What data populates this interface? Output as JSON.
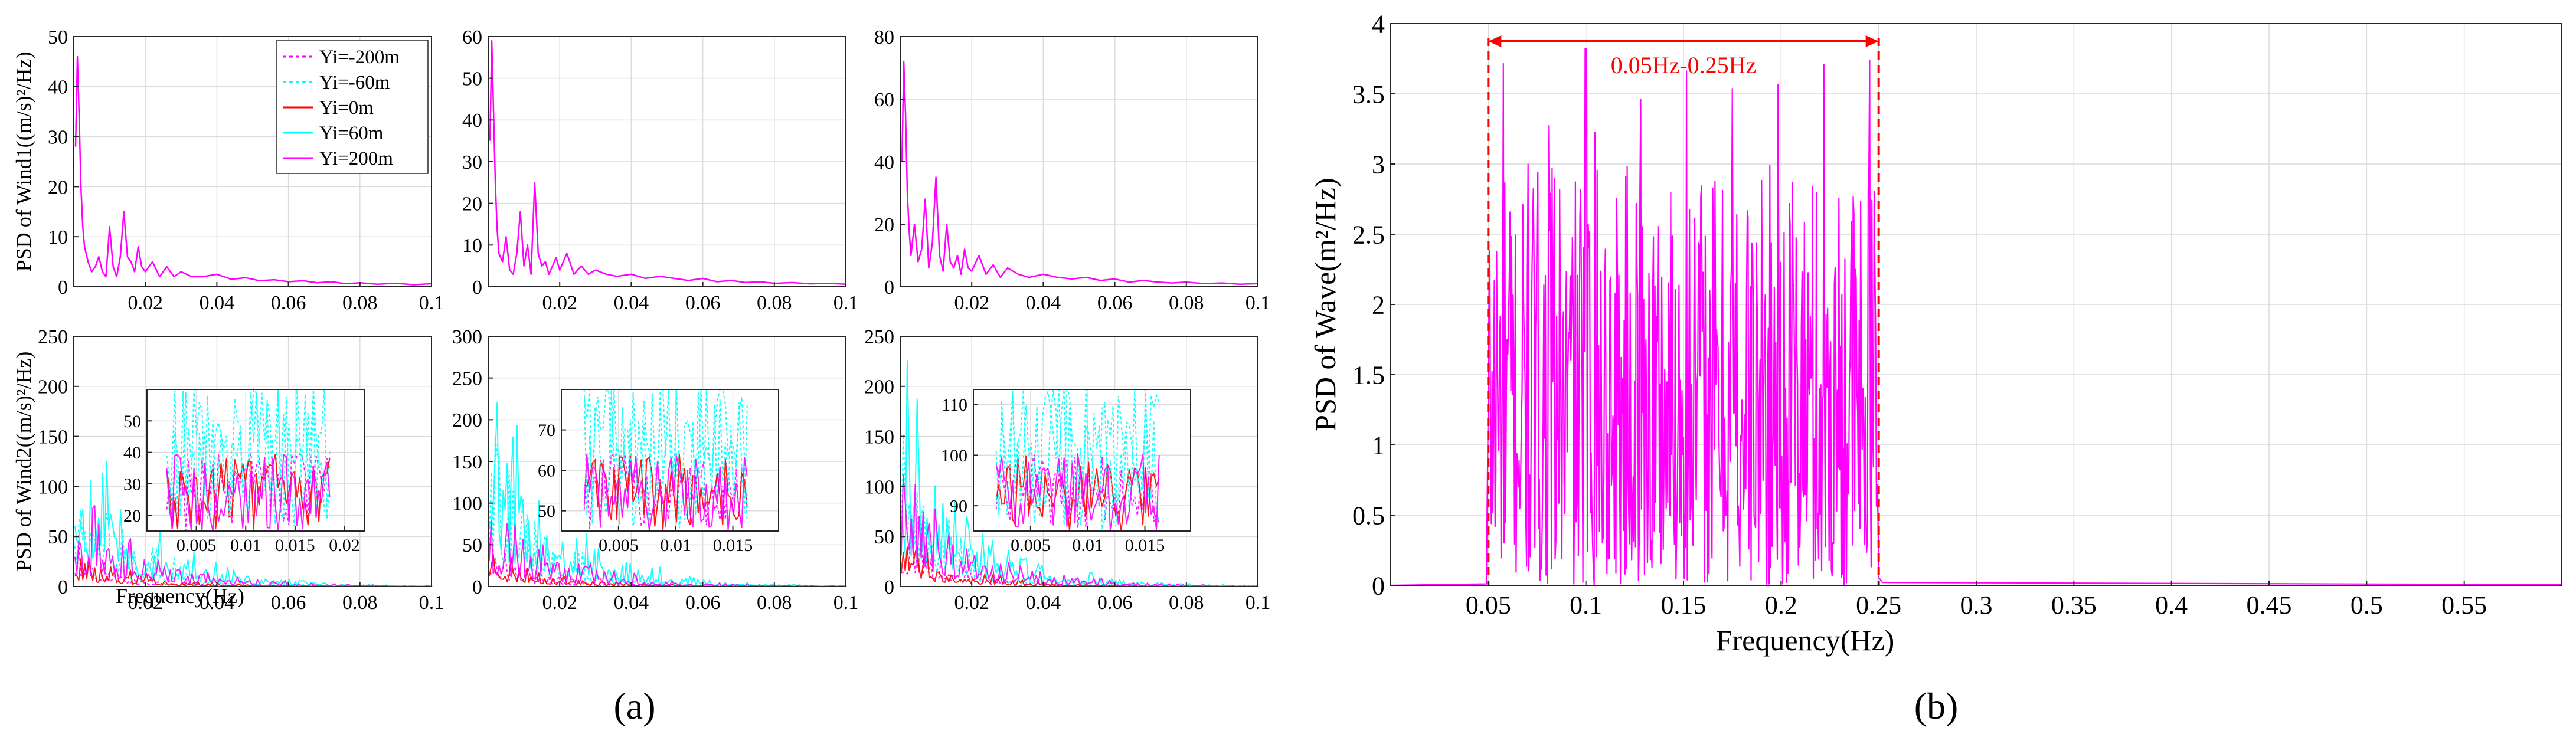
{
  "figure": {
    "panel_a_label": "(a)",
    "panel_b_label": "(b)"
  },
  "chart_data": [
    {
      "id": "a_top_1",
      "type": "line",
      "ylabel": "PSD of Wind1((m/s)²/Hz)",
      "xlim": [
        0,
        0.1
      ],
      "ylim": [
        0,
        50
      ],
      "xticks": [
        "0.02",
        "0.04",
        "0.06",
        "0.08",
        "0.1"
      ],
      "yticks": [
        "0",
        "10",
        "20",
        "30",
        "40",
        "50"
      ],
      "legend": [
        "Yi=-200m",
        "Yi=-60m",
        "Yi=0m",
        "Yi=60m",
        "Yi=200m"
      ],
      "series": [
        {
          "name": "Yi=200m",
          "color": "#ff00ff",
          "x": [
            0.0005,
            0.001,
            0.0015,
            0.002,
            0.0025,
            0.003,
            0.004,
            0.005,
            0.006,
            0.007,
            0.008,
            0.009,
            0.01,
            0.011,
            0.012,
            0.013,
            0.014,
            0.015,
            0.016,
            0.017,
            0.018,
            0.019,
            0.02,
            0.022,
            0.024,
            0.026,
            0.028,
            0.03,
            0.033,
            0.036,
            0.04,
            0.044,
            0.048,
            0.052,
            0.056,
            0.06,
            0.064,
            0.068,
            0.072,
            0.076,
            0.08,
            0.085,
            0.09,
            0.095,
            0.1
          ],
          "y": [
            28,
            46,
            34,
            20,
            12,
            8,
            5,
            3,
            4,
            6,
            3,
            2,
            12,
            4,
            2,
            6,
            15,
            6,
            5,
            3,
            8,
            4,
            3,
            5,
            2,
            4,
            2,
            3,
            2,
            2,
            2.5,
            1.5,
            1.8,
            1.2,
            1.4,
            1,
            1.2,
            0.8,
            1,
            0.6,
            0.8,
            0.5,
            0.7,
            0.4,
            0.6
          ]
        }
      ]
    },
    {
      "id": "a_top_2",
      "type": "line",
      "xlim": [
        0,
        0.1
      ],
      "ylim": [
        0,
        60
      ],
      "xticks": [
        "0.02",
        "0.04",
        "0.06",
        "0.08",
        "0.1"
      ],
      "yticks": [
        "0",
        "10",
        "20",
        "30",
        "40",
        "50",
        "60"
      ],
      "series": [
        {
          "name": "Yi=200m",
          "color": "#ff00ff",
          "x": [
            0.0005,
            0.001,
            0.0015,
            0.002,
            0.0025,
            0.003,
            0.004,
            0.005,
            0.006,
            0.007,
            0.008,
            0.009,
            0.01,
            0.011,
            0.012,
            0.013,
            0.014,
            0.015,
            0.016,
            0.017,
            0.018,
            0.019,
            0.02,
            0.022,
            0.024,
            0.026,
            0.028,
            0.03,
            0.033,
            0.036,
            0.04,
            0.044,
            0.048,
            0.052,
            0.056,
            0.06,
            0.064,
            0.068,
            0.072,
            0.076,
            0.08,
            0.085,
            0.09,
            0.095,
            0.1
          ],
          "y": [
            35,
            59,
            42,
            25,
            14,
            8,
            6,
            12,
            4,
            3,
            8,
            18,
            5,
            10,
            3,
            25,
            8,
            5,
            6,
            3,
            5,
            7,
            4,
            8,
            3,
            5,
            3,
            4,
            3,
            2.5,
            3,
            2,
            2.5,
            2,
            1.5,
            2,
            1.2,
            1.5,
            1,
            1.2,
            0.8,
            1,
            0.7,
            0.8,
            0.6
          ]
        }
      ]
    },
    {
      "id": "a_top_3",
      "type": "line",
      "xlim": [
        0,
        0.1
      ],
      "ylim": [
        0,
        80
      ],
      "xticks": [
        "0.02",
        "0.04",
        "0.06",
        "0.08",
        "0.1"
      ],
      "yticks": [
        "0",
        "20",
        "40",
        "60",
        "80"
      ],
      "series": [
        {
          "name": "Yi=200m",
          "color": "#ff00ff",
          "x": [
            0.0005,
            0.001,
            0.0015,
            0.002,
            0.0025,
            0.003,
            0.004,
            0.005,
            0.006,
            0.007,
            0.008,
            0.009,
            0.01,
            0.011,
            0.012,
            0.013,
            0.014,
            0.015,
            0.016,
            0.017,
            0.018,
            0.019,
            0.02,
            0.022,
            0.024,
            0.026,
            0.028,
            0.03,
            0.033,
            0.036,
            0.04,
            0.044,
            0.048,
            0.052,
            0.056,
            0.06,
            0.064,
            0.068,
            0.072,
            0.076,
            0.08,
            0.085,
            0.09,
            0.095,
            0.1
          ],
          "y": [
            40,
            72,
            55,
            30,
            18,
            10,
            20,
            8,
            12,
            28,
            6,
            14,
            35,
            10,
            5,
            20,
            8,
            6,
            10,
            4,
            12,
            6,
            5,
            10,
            4,
            7,
            3,
            6,
            4,
            3,
            4,
            3,
            2.5,
            3,
            2,
            2.5,
            1.5,
            2,
            1.5,
            1.2,
            1.5,
            1,
            1.2,
            0.8,
            1
          ]
        }
      ]
    },
    {
      "id": "a_bot_1",
      "type": "line",
      "ylabel": "PSD of Wind2((m/s)²/Hz)",
      "xlabel": "Frequency(Hz)",
      "xlim": [
        0,
        0.1
      ],
      "ylim": [
        0,
        250
      ],
      "xticks": [
        "0.02",
        "0.04",
        "0.06",
        "0.08",
        "0.1"
      ],
      "yticks": [
        "0",
        "50",
        "100",
        "150",
        "200",
        "250"
      ],
      "inset": {
        "xlim": [
          0,
          0.022
        ],
        "ylim": [
          15,
          60
        ],
        "xticks": [
          "0.005",
          "0.01",
          "0.015",
          "0.02"
        ],
        "yticks": [
          "20",
          "30",
          "40",
          "50"
        ]
      }
    },
    {
      "id": "a_bot_2",
      "type": "line",
      "xlim": [
        0,
        0.1
      ],
      "ylim": [
        0,
        300
      ],
      "xticks": [
        "0.02",
        "0.04",
        "0.06",
        "0.08",
        "0.1"
      ],
      "yticks": [
        "0",
        "50",
        "100",
        "150",
        "200",
        "250",
        "300"
      ],
      "inset": {
        "xlim": [
          0,
          0.019
        ],
        "ylim": [
          45,
          80
        ],
        "xticks": [
          "0.005",
          "0.01",
          "0.015"
        ],
        "yticks": [
          "50",
          "60",
          "70"
        ]
      }
    },
    {
      "id": "a_bot_3",
      "type": "line",
      "xlim": [
        0,
        0.1
      ],
      "ylim": [
        0,
        250
      ],
      "xticks": [
        "0.02",
        "0.04",
        "0.06",
        "0.08",
        "0.1"
      ],
      "yticks": [
        "0",
        "50",
        "100",
        "150",
        "200",
        "250"
      ],
      "inset": {
        "xlim": [
          0,
          0.019
        ],
        "ylim": [
          85,
          113
        ],
        "xticks": [
          "0.005",
          "0.01",
          "0.015"
        ],
        "yticks": [
          "90",
          "100",
          "110"
        ]
      }
    },
    {
      "id": "b",
      "type": "line",
      "xlabel": "Frequency(Hz)",
      "ylabel": "PSD of Wave(m²/Hz)",
      "xlim": [
        0,
        0.6
      ],
      "ylim": [
        0,
        4
      ],
      "xticks": [
        "0.05",
        "0.1",
        "0.15",
        "0.2",
        "0.25",
        "0.3",
        "0.35",
        "0.4",
        "0.45",
        "0.5",
        "0.55"
      ],
      "yticks": [
        "0",
        "0.5",
        "1",
        "1.5",
        "2",
        "2.5",
        "3",
        "3.5",
        "4"
      ],
      "annotation": {
        "text": "0.05Hz-0.25Hz",
        "from": 0.05,
        "to": 0.25,
        "color": "#ff0000"
      },
      "series": [
        {
          "name": "Wave",
          "color": "#ff00ff",
          "band": [
            0.05,
            0.25
          ],
          "max": 3.82
        }
      ]
    }
  ]
}
